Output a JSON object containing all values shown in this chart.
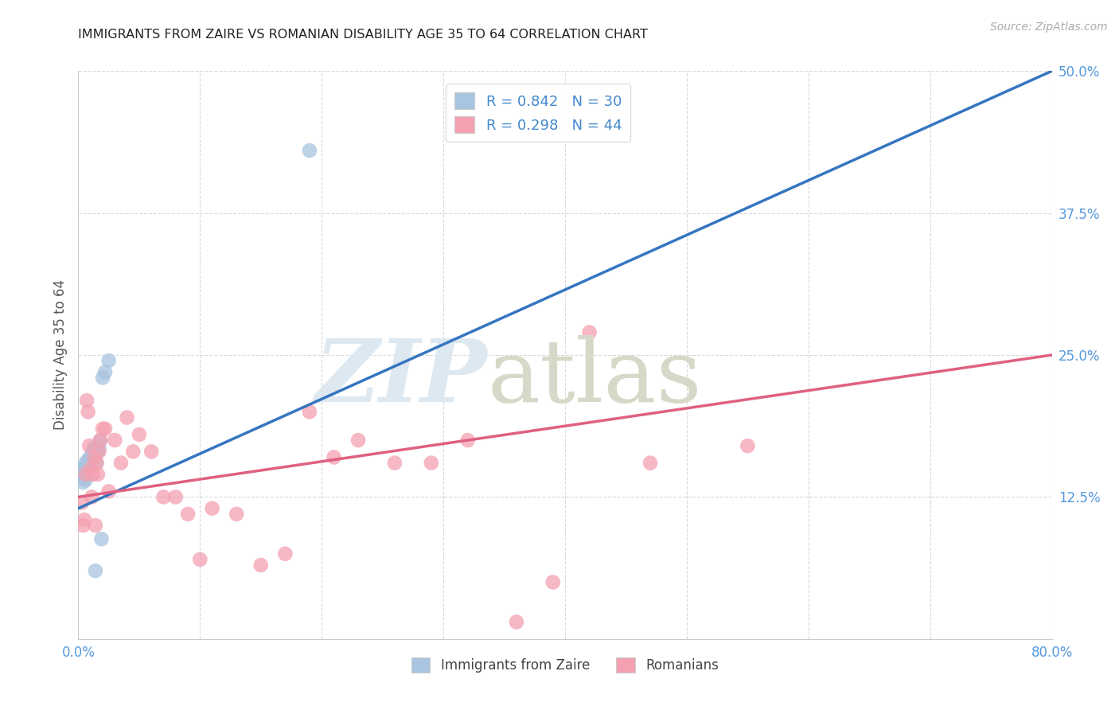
{
  "title": "IMMIGRANTS FROM ZAIRE VS ROMANIAN DISABILITY AGE 35 TO 64 CORRELATION CHART",
  "source": "Source: ZipAtlas.com",
  "ylabel": "Disability Age 35 to 64",
  "xlim": [
    0.0,
    0.8
  ],
  "ylim": [
    0.0,
    0.5
  ],
  "xticks": [
    0.0,
    0.1,
    0.2,
    0.3,
    0.4,
    0.5,
    0.6,
    0.7,
    0.8
  ],
  "xticklabels": [
    "0.0%",
    "",
    "",
    "",
    "",
    "",
    "",
    "",
    "80.0%"
  ],
  "yticks": [
    0.0,
    0.125,
    0.25,
    0.375,
    0.5
  ],
  "yticklabels": [
    "",
    "12.5%",
    "25.0%",
    "37.5%",
    "50.0%"
  ],
  "zaire_R": 0.842,
  "zaire_N": 30,
  "romanian_R": 0.298,
  "romanian_N": 44,
  "zaire_color": "#a8c4e0",
  "romanian_color": "#f4a0b0",
  "zaire_line_color": "#3575c0",
  "romanian_line_color": "#e06080",
  "legend_label_zaire": "Immigrants from Zaire",
  "legend_label_romanian": "Romanians",
  "background_color": "#ffffff",
  "grid_color": "#d0d0d0",
  "zaire_x": [
    0.002,
    0.003,
    0.003,
    0.004,
    0.004,
    0.005,
    0.005,
    0.006,
    0.006,
    0.007,
    0.007,
    0.008,
    0.008,
    0.009,
    0.009,
    0.01,
    0.01,
    0.011,
    0.012,
    0.013,
    0.014,
    0.015,
    0.016,
    0.017,
    0.018,
    0.019,
    0.02,
    0.022,
    0.025,
    0.19
  ],
  "zaire_y": [
    0.148,
    0.15,
    0.142,
    0.145,
    0.138,
    0.148,
    0.143,
    0.155,
    0.14,
    0.152,
    0.148,
    0.158,
    0.145,
    0.155,
    0.15,
    0.16,
    0.155,
    0.162,
    0.165,
    0.168,
    0.06,
    0.155,
    0.165,
    0.168,
    0.175,
    0.088,
    0.23,
    0.235,
    0.245,
    0.43
  ],
  "romanian_x": [
    0.003,
    0.004,
    0.005,
    0.006,
    0.007,
    0.008,
    0.009,
    0.01,
    0.011,
    0.012,
    0.013,
    0.014,
    0.015,
    0.016,
    0.017,
    0.018,
    0.02,
    0.022,
    0.025,
    0.03,
    0.035,
    0.04,
    0.045,
    0.05,
    0.06,
    0.07,
    0.08,
    0.09,
    0.1,
    0.11,
    0.13,
    0.15,
    0.17,
    0.19,
    0.21,
    0.23,
    0.26,
    0.29,
    0.32,
    0.36,
    0.39,
    0.42,
    0.47,
    0.55
  ],
  "romanian_y": [
    0.12,
    0.1,
    0.105,
    0.145,
    0.21,
    0.2,
    0.17,
    0.15,
    0.125,
    0.145,
    0.16,
    0.1,
    0.155,
    0.145,
    0.165,
    0.175,
    0.185,
    0.185,
    0.13,
    0.175,
    0.155,
    0.195,
    0.165,
    0.18,
    0.165,
    0.125,
    0.125,
    0.11,
    0.07,
    0.115,
    0.11,
    0.065,
    0.075,
    0.2,
    0.16,
    0.175,
    0.155,
    0.155,
    0.175,
    0.015,
    0.05,
    0.27,
    0.155,
    0.17
  ],
  "zaire_line_x": [
    0.0,
    0.8
  ],
  "zaire_line_y": [
    0.115,
    0.5
  ],
  "romanian_line_x": [
    0.0,
    0.8
  ],
  "romanian_line_y": [
    0.125,
    0.25
  ]
}
